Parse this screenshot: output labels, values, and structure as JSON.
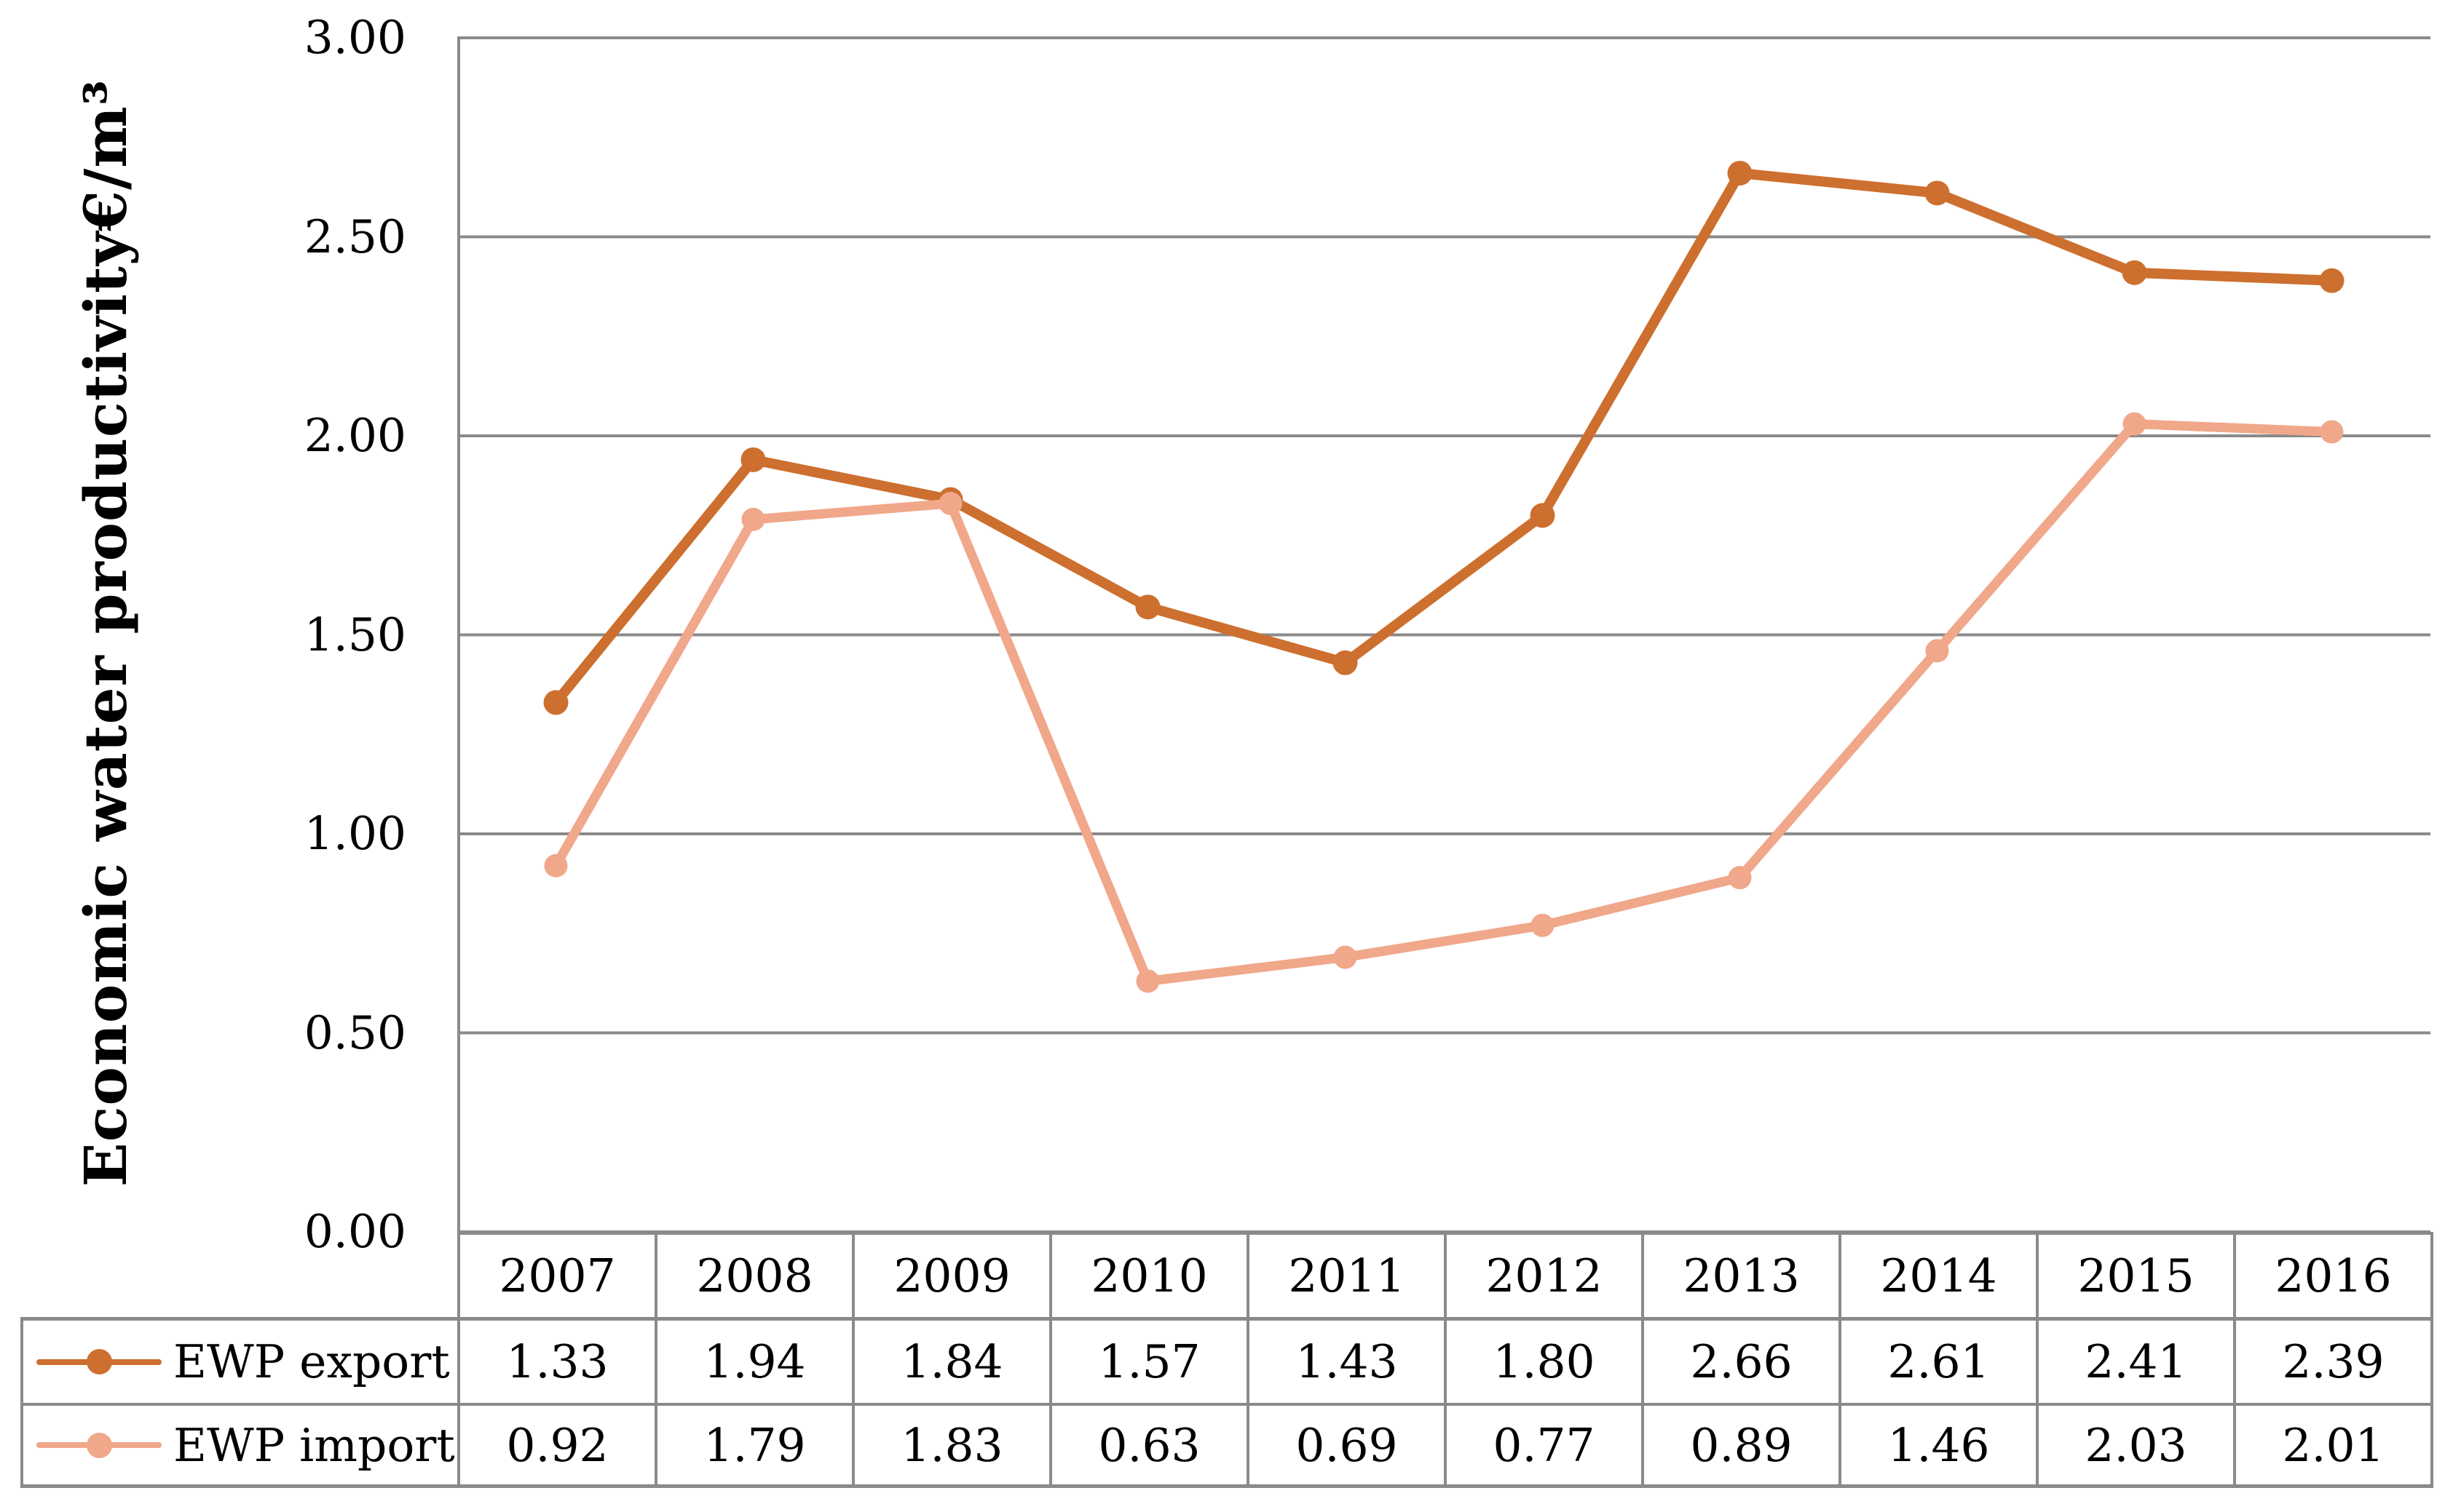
{
  "colors": {
    "export_series": "#CD6F2E",
    "import_series": "#F0A78A",
    "grid_line": "#8a8a8a",
    "text": "#000000",
    "background": "#ffffff"
  },
  "y_axis": {
    "title": "Economic water productivity€/m³",
    "tick_labels": [
      "3.00",
      "2.50",
      "2.00",
      "1.50",
      "1.00",
      "0.50",
      "0.00"
    ],
    "min": 0,
    "max": 3,
    "step": 0.5
  },
  "chart_data": {
    "type": "line",
    "title": "",
    "xlabel": "",
    "ylabel": "Economic water productivity€/m³",
    "ylim": [
      0,
      3
    ],
    "ytick_step": 0.5,
    "grid": true,
    "legend_position": "table-left",
    "categories": [
      "2007",
      "2008",
      "2009",
      "2010",
      "2011",
      "2012",
      "2013",
      "2014",
      "2015",
      "2016"
    ],
    "series": [
      {
        "name": "EWP export",
        "color": "#CD6F2E",
        "marker": "circle",
        "values": [
          1.33,
          1.94,
          1.84,
          1.57,
          1.43,
          1.8,
          2.66,
          2.61,
          2.41,
          2.39
        ]
      },
      {
        "name": "EWP import",
        "color": "#F0A78A",
        "marker": "circle",
        "values": [
          0.92,
          1.79,
          1.83,
          0.63,
          0.69,
          0.77,
          0.89,
          1.46,
          2.03,
          2.01
        ]
      }
    ]
  },
  "table": {
    "header_row": [
      "2007",
      "2008",
      "2009",
      "2010",
      "2011",
      "2012",
      "2013",
      "2014",
      "2015",
      "2016"
    ],
    "rows": [
      {
        "label": "EWP export",
        "values": [
          "1.33",
          "1.94",
          "1.84",
          "1.57",
          "1.43",
          "1.80",
          "2.66",
          "2.61",
          "2.41",
          "2.39"
        ]
      },
      {
        "label": "EWP import",
        "values": [
          "0.92",
          "1.79",
          "1.83",
          "0.63",
          "0.69",
          "0.77",
          "0.89",
          "1.46",
          "2.03",
          "2.01"
        ]
      }
    ]
  }
}
